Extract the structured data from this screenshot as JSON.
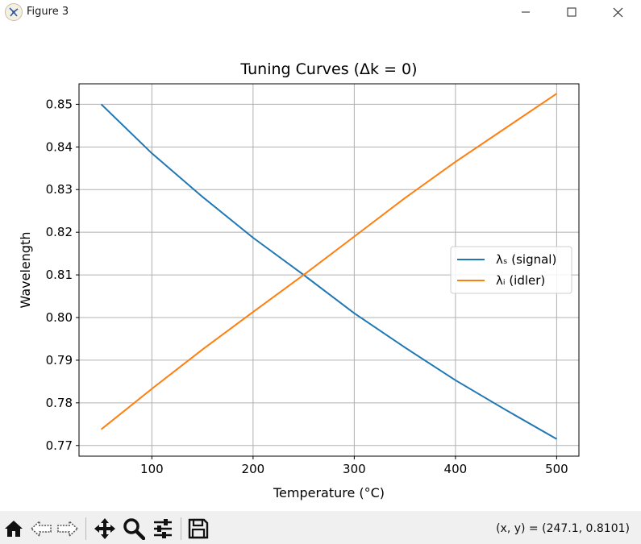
{
  "window": {
    "title": "Figure 3",
    "icon": "matplotlib-figure-icon",
    "controls": [
      "minimize-icon",
      "maximize-icon",
      "close-icon"
    ]
  },
  "toolbar": {
    "buttons": [
      "home-icon",
      "back-icon",
      "forward-icon",
      "pan-icon",
      "zoom-icon",
      "configure-subplots-icon",
      "save-icon"
    ],
    "coordinates": "(x, y) = (247.1, 0.8101)"
  },
  "chart_data": {
    "type": "line",
    "title": "Tuning Curves (Δk = 0)",
    "xlabel": "Temperature (°C)",
    "ylabel": "Wavelength",
    "xlim": [
      28,
      522
    ],
    "ylim": [
      0.7675,
      0.8548
    ],
    "xticks": [
      100,
      200,
      300,
      400,
      500
    ],
    "yticks": [
      0.77,
      0.78,
      0.79,
      0.8,
      0.81,
      0.82,
      0.83,
      0.84,
      0.85
    ],
    "ytick_labels": [
      "0.77",
      "0.78",
      "0.79",
      "0.80",
      "0.81",
      "0.82",
      "0.83",
      "0.84",
      "0.85"
    ],
    "grid": true,
    "legend_position": "center-right",
    "series": [
      {
        "name": "λₛ (signal)",
        "color": "#1f77b4",
        "x": [
          50,
          100,
          150,
          200,
          250,
          300,
          350,
          400,
          450,
          500
        ],
        "y": [
          0.85,
          0.8385,
          0.8283,
          0.8187,
          0.81,
          0.801,
          0.793,
          0.7853,
          0.7783,
          0.7715
        ]
      },
      {
        "name": "λᵢ (idler)",
        "color": "#ff7f0e",
        "x": [
          50,
          100,
          150,
          200,
          250,
          300,
          350,
          400,
          450,
          500
        ],
        "y": [
          0.7738,
          0.7833,
          0.7925,
          0.8013,
          0.81,
          0.819,
          0.828,
          0.8365,
          0.8445,
          0.8525
        ]
      }
    ]
  }
}
